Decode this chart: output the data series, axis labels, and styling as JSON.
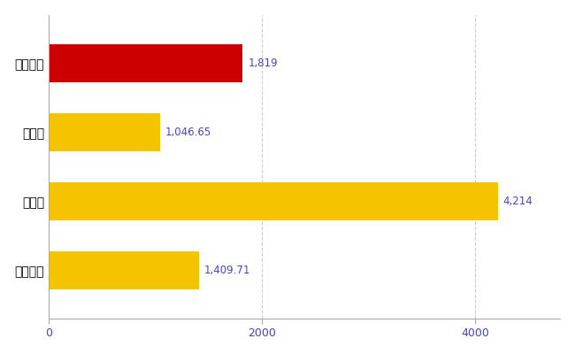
{
  "categories": [
    "伊万里市",
    "県平均",
    "県最大",
    "全国平均"
  ],
  "values": [
    1819,
    1046.65,
    4214,
    1409.71
  ],
  "labels": [
    "1,819",
    "1,046.65",
    "4,214",
    "1,409.71"
  ],
  "bar_colors": [
    "#cc0000",
    "#f5c400",
    "#f5c400",
    "#f5c400"
  ],
  "background_color": "#ffffff",
  "xlim": [
    0,
    4800
  ],
  "xticks": [
    0,
    2000,
    4000
  ],
  "label_color": "#4444cc",
  "grid_color": "#cccccc",
  "tick_color": "#888888",
  "figsize": [
    6.5,
    4.0
  ],
  "bar_height": 0.55
}
